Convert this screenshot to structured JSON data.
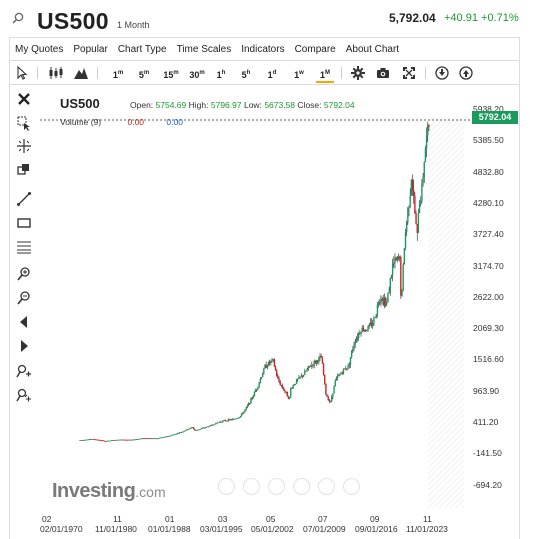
{
  "header": {
    "title": "US500",
    "period": "1 Month",
    "last_price": "5,792.04",
    "change": "+40.91",
    "change_pct": "+0.71%"
  },
  "menu": [
    "My Quotes",
    "Popular",
    "Chart Type",
    "Time Scales",
    "Indicators",
    "Compare",
    "About Chart"
  ],
  "toolbar": {
    "timeframes": [
      {
        "num": "1",
        "unit": "m"
      },
      {
        "num": "5",
        "unit": "m"
      },
      {
        "num": "15",
        "unit": "m"
      },
      {
        "num": "30",
        "unit": "m"
      },
      {
        "num": "1",
        "unit": "h"
      },
      {
        "num": "5",
        "unit": "h"
      },
      {
        "num": "1",
        "unit": "d"
      },
      {
        "num": "1",
        "unit": "w"
      },
      {
        "num": "1",
        "unit": "M"
      }
    ],
    "active_timeframe": "1M"
  },
  "chart": {
    "symbol": "US500",
    "open_label": "Open:",
    "open": "5754.69",
    "high_label": "High:",
    "high": "5796.97",
    "low_label": "Low:",
    "low": "5673.58",
    "close_label": "Close:",
    "close": "5792.04",
    "volume_label": "Volume (9)",
    "volume_values": [
      "0.00",
      "0.00"
    ],
    "price_tag": "5792.04",
    "logo": "Investing",
    "logo_suffix": ".com",
    "colors": {
      "up": "#1a9a5c",
      "down": "#d02020",
      "accent": "#f2a900"
    }
  },
  "chart_data": {
    "type": "line",
    "title": "US500",
    "y_ticks": [
      "5938.20",
      "5385.50",
      "4832.80",
      "4280.10",
      "3727.40",
      "3174.70",
      "2622.00",
      "2069.30",
      "1516.60",
      "963.90",
      "411.20",
      "-141.50",
      "-694.20"
    ],
    "ylim": [
      -694.2,
      5938.2
    ],
    "x_ticks_top": [
      "02",
      "11",
      "01",
      "03",
      "05",
      "07",
      "09",
      "11"
    ],
    "x_ticks_bottom": [
      "02/01/1970",
      "11/01/1980",
      "01/01/1988",
      "03/01/1995",
      "05/01/2002",
      "07/01/2009",
      "09/01/2016",
      "11/01/2023"
    ],
    "series": [
      {
        "x": [
          1970,
          1972,
          1974,
          1976,
          1978,
          1980,
          1982,
          1984,
          1986,
          1987.6,
          1988,
          1990,
          1992,
          1994,
          1995,
          1996,
          1997,
          1998,
          1999,
          2000.2,
          2001,
          2002.8,
          2003,
          2004,
          2005,
          2006,
          2007.8,
          2008.5,
          2009.2,
          2010,
          2011,
          2012,
          2013,
          2014,
          2015,
          2016,
          2017,
          2018,
          2019,
          2020.1,
          2020.3,
          2020.7,
          2021,
          2021.9,
          2022.8,
          2023,
          2023.5,
          2024,
          2024.8
        ],
        "y": [
          90,
          110,
          75,
          100,
          95,
          125,
          120,
          165,
          240,
          320,
          260,
          330,
          420,
          460,
          500,
          650,
          850,
          1100,
          1400,
          1500,
          1150,
          820,
          1000,
          1150,
          1250,
          1400,
          1550,
          900,
          750,
          1150,
          1300,
          1400,
          1850,
          2050,
          2050,
          2200,
          2650,
          2500,
          3200,
          3300,
          2400,
          3400,
          3800,
          4750,
          3650,
          4200,
          4500,
          5200,
          5792
        ]
      }
    ]
  }
}
